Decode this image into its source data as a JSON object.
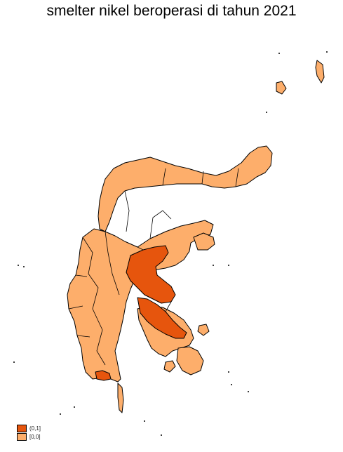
{
  "title": "smelter nikel beroperasi di tahun 2021",
  "legend": [
    {
      "label": "(0,1]",
      "color": "#e6550d"
    },
    {
      "label": "[0,0]",
      "color": "#fdae6b"
    }
  ],
  "colors": {
    "low": "#fdae6b",
    "high": "#e6550d",
    "border": "#000000",
    "background": "#ffffff"
  }
}
